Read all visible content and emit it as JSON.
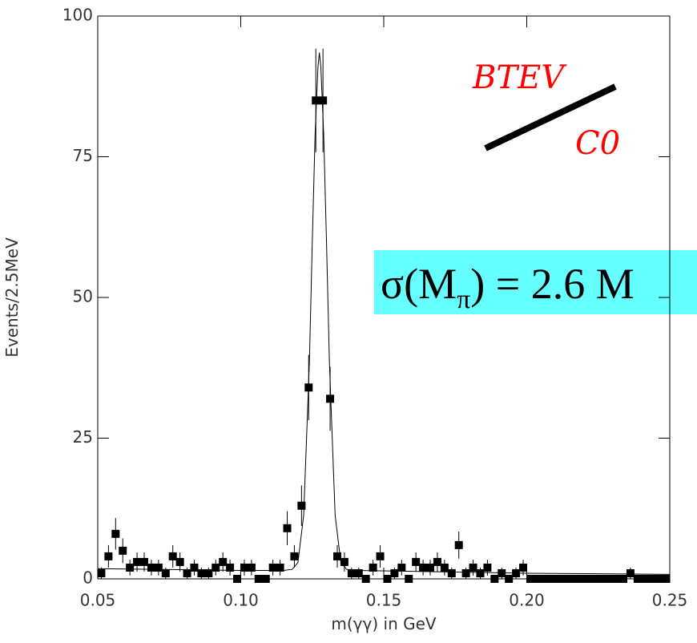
{
  "chart_data": {
    "type": "scatter",
    "xlabel": "m(γγ) in GeV",
    "ylabel": "Events/2.5MeV",
    "xlim": [
      0.05,
      0.25
    ],
    "ylim": [
      0,
      100
    ],
    "xticks": [
      0.05,
      {
        "value": 0.1,
        "label": "0.10"
      },
      0.15,
      {
        "value": 0.2,
        "label": "0.20"
      },
      0.25
    ],
    "yticks": [
      0,
      25,
      50,
      75,
      100
    ],
    "series": [
      {
        "color": "#000000",
        "x": [
          0.05125,
          0.05375,
          0.05625,
          0.05875,
          0.06125,
          0.06375,
          0.06625,
          0.06875,
          0.07125,
          0.07375,
          0.07625,
          0.07875,
          0.08125,
          0.08375,
          0.08625,
          0.08875,
          0.09125,
          0.09375,
          0.09625,
          0.09875,
          0.10125,
          0.10375,
          0.10625,
          0.10875,
          0.11125,
          0.11375,
          0.11625,
          0.11875,
          0.12125,
          0.12375,
          0.12625,
          0.12875,
          0.13125,
          0.13375,
          0.13625,
          0.13875,
          0.14125,
          0.14375,
          0.14625,
          0.14875,
          0.15125,
          0.15375,
          0.15625,
          0.15875,
          0.16125,
          0.16375,
          0.16625,
          0.16875,
          0.17125,
          0.17375,
          0.17625,
          0.17875,
          0.18125,
          0.18375,
          0.18625,
          0.18875,
          0.19125,
          0.19375,
          0.19625,
          0.19875,
          0.20125,
          0.20375,
          0.20625,
          0.20875,
          0.21125,
          0.21375,
          0.21625,
          0.21875,
          0.22125,
          0.22375,
          0.22625,
          0.22875,
          0.23125,
          0.23375,
          0.23625,
          0.23875,
          0.24125,
          0.24375,
          0.24625,
          0.24875
        ],
        "values": [
          1,
          4,
          8,
          5,
          2,
          3,
          3,
          2,
          2,
          1,
          4,
          3,
          1,
          2,
          1,
          1,
          2,
          3,
          2,
          0,
          2,
          2,
          0,
          0,
          2,
          2,
          9,
          4,
          13,
          34,
          85,
          85,
          32,
          4,
          3,
          1,
          1,
          0,
          2,
          4,
          0,
          1,
          2,
          0,
          3,
          2,
          2,
          3,
          2,
          1,
          6,
          1,
          2,
          1,
          2,
          0,
          1,
          0,
          1,
          2,
          0,
          0,
          0,
          0,
          0,
          0,
          0,
          0,
          0,
          0,
          0,
          0,
          0,
          0,
          1,
          0,
          0,
          0,
          0,
          0
        ],
        "errors": [
          1,
          2,
          2.8,
          2.2,
          1.4,
          1.7,
          1.7,
          1.4,
          1.4,
          1,
          2,
          1.7,
          1,
          1.4,
          1,
          1,
          1.4,
          1.7,
          1.4,
          0,
          1.4,
          1.4,
          0,
          0,
          1.4,
          1.4,
          3,
          2,
          3.6,
          5.8,
          9.2,
          9.2,
          5.7,
          2,
          1.7,
          1,
          1,
          0,
          1.4,
          2,
          0,
          1,
          1.4,
          0,
          1.7,
          1.4,
          1.4,
          1.7,
          1.4,
          1,
          2.4,
          1,
          1.4,
          1,
          1.4,
          0,
          1,
          0,
          1,
          1.4,
          0,
          0,
          0,
          0,
          0,
          0,
          0,
          0,
          0,
          0,
          0,
          0,
          0,
          0,
          1,
          0,
          0,
          0,
          0,
          0
        ]
      },
      {
        "type": "line",
        "color": "#000000",
        "x": [
          0.05,
          0.1,
          0.115,
          0.118,
          0.12,
          0.122,
          0.124,
          0.125,
          0.126,
          0.127,
          0.1275,
          0.128,
          0.129,
          0.13,
          0.131,
          0.133,
          0.135,
          0.137,
          0.14,
          0.2,
          0.25
        ],
        "values": [
          1.8,
          1.5,
          1.5,
          1.7,
          2.9,
          11.3,
          38.5,
          59.5,
          79,
          91,
          93.5,
          91,
          79,
          59.5,
          38.5,
          11.3,
          2.9,
          1.7,
          1.5,
          1.0,
          0.8
        ]
      }
    ],
    "annotations": {
      "logo_top": "BTEV",
      "logo_bottom": "C0",
      "sigma_prefix": "σ(M",
      "sigma_subscript": "π",
      "sigma_suffix": ") = 2.6 M"
    }
  }
}
